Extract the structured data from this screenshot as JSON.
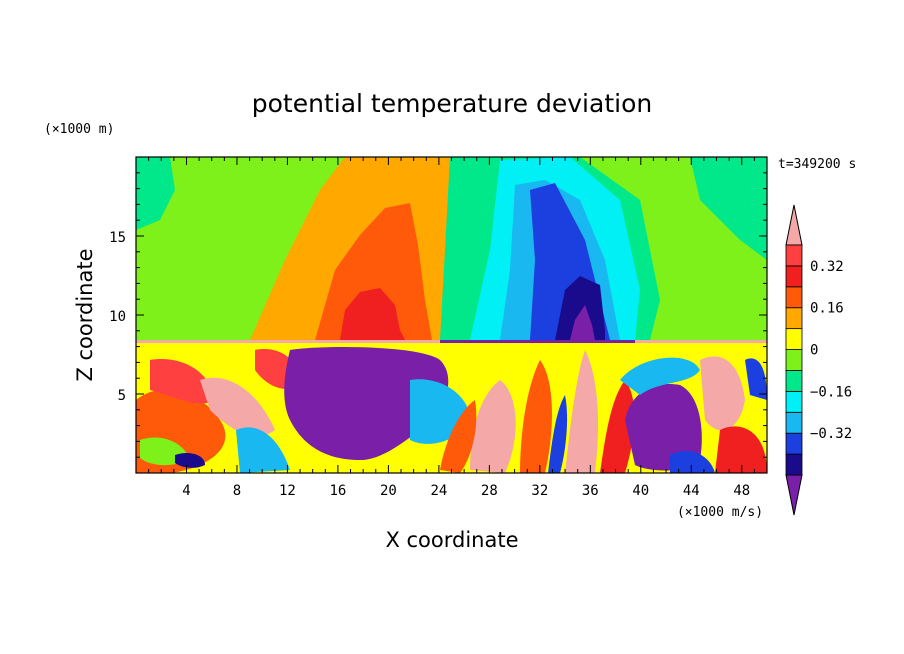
{
  "chart_data": {
    "type": "heatmap",
    "title": "potential temperature deviation",
    "xlabel": "X coordinate",
    "ylabel": "Z coordinate",
    "x_unit_label": "(×1000 m/s)",
    "y_unit_label": "(×1000 m)",
    "time_label": "t=349200 s",
    "xlim": [
      0,
      50
    ],
    "ylim": [
      0,
      20
    ],
    "x_ticks": [
      4,
      8,
      12,
      16,
      20,
      24,
      28,
      32,
      36,
      40,
      44,
      48
    ],
    "y_ticks": [
      5,
      10,
      15
    ],
    "colorbar": {
      "levels": [
        -0.48,
        -0.4,
        -0.32,
        -0.24,
        -0.16,
        -0.08,
        0,
        0.08,
        0.16,
        0.24,
        0.32,
        0.4
      ],
      "labels": [
        "0.32",
        "0.16",
        "0",
        "−0.16",
        "−0.32"
      ],
      "label_values": [
        0.32,
        0.16,
        0,
        -0.16,
        -0.32
      ],
      "colors": [
        "#7a1fa8",
        "#1a0a8c",
        "#1c3fe0",
        "#19b8f0",
        "#00f0f5",
        "#00e88a",
        "#7ef01a",
        "#ffff00",
        "#ffa800",
        "#ff5a0a",
        "#f02020",
        "#ff4040",
        "#f4a8a8"
      ]
    },
    "upper_layer": {
      "z_range": [
        8.3,
        20
      ],
      "features": [
        {
          "name": "warm anomaly",
          "x_center": 19,
          "peak_value": 0.28
        },
        {
          "name": "cold anomaly",
          "x_center": 34,
          "peak_value": -0.42
        }
      ]
    },
    "lower_layer": {
      "z_range": [
        0,
        8.3
      ],
      "features": [
        {
          "name": "cold plume",
          "x_center": 19,
          "peak_value": -0.45
        },
        {
          "name": "cold plume",
          "x_center": 42,
          "peak_value": -0.45
        },
        {
          "name": "warm plume",
          "x_center": 31,
          "peak_value": 0.45
        },
        {
          "name": "warm plume",
          "x_center": 35,
          "peak_value": 0.45
        }
      ]
    }
  }
}
